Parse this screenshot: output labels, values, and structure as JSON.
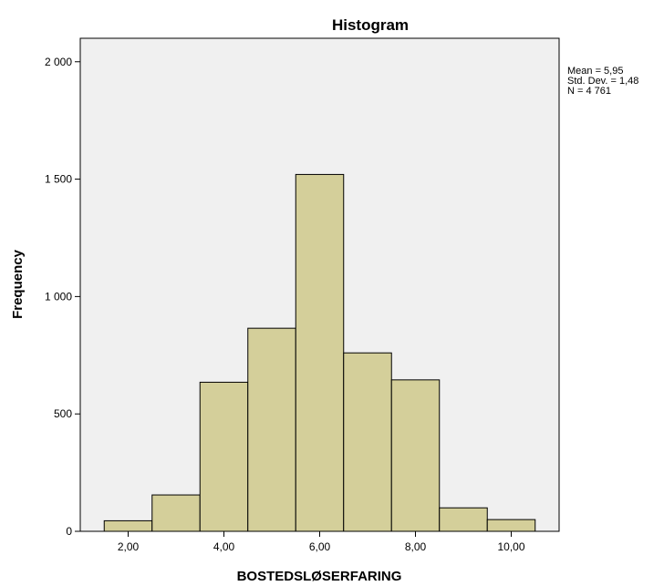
{
  "chart_data": {
    "type": "bar",
    "title": "Histogram",
    "xlabel": "BOSTEDSLØSERFARING",
    "ylabel": "Frequency",
    "bins": [
      {
        "from": 1.5,
        "to": 2.5,
        "count": 45
      },
      {
        "from": 2.5,
        "to": 3.5,
        "count": 155
      },
      {
        "from": 3.5,
        "to": 4.5,
        "count": 635
      },
      {
        "from": 4.5,
        "to": 5.5,
        "count": 865
      },
      {
        "from": 5.5,
        "to": 6.5,
        "count": 1520
      },
      {
        "from": 6.5,
        "to": 7.5,
        "count": 760
      },
      {
        "from": 7.5,
        "to": 8.5,
        "count": 645
      },
      {
        "from": 8.5,
        "to": 9.5,
        "count": 100
      },
      {
        "from": 9.5,
        "to": 10.5,
        "count": 50
      }
    ],
    "xlim": [
      1.0,
      11.0
    ],
    "ylim": [
      0,
      2100
    ],
    "xticks": [
      {
        "value": 2,
        "label": "2,00"
      },
      {
        "value": 4,
        "label": "4,00"
      },
      {
        "value": 6,
        "label": "6,00"
      },
      {
        "value": 8,
        "label": "8,00"
      },
      {
        "value": 10,
        "label": "10,00"
      }
    ],
    "yticks": [
      {
        "value": 0,
        "label": "0"
      },
      {
        "value": 500,
        "label": "500"
      },
      {
        "value": 1000,
        "label": "1 000"
      },
      {
        "value": 1500,
        "label": "1 500"
      },
      {
        "value": 2000,
        "label": "2 000"
      }
    ],
    "stats": [
      "Mean = 5,95",
      "Std. Dev. = 1,48",
      "N = 4 761"
    ],
    "grid": false,
    "legend": "none",
    "colors": {
      "bar_fill": "#d4cf9a",
      "bar_stroke": "#000000",
      "plot_bg": "#f0f0f0"
    }
  }
}
